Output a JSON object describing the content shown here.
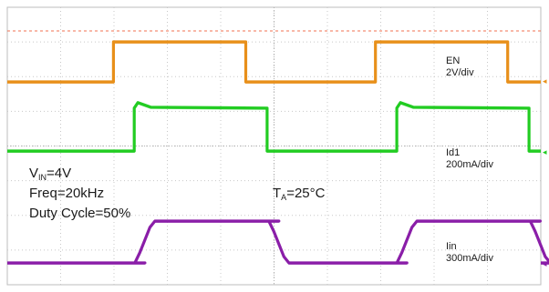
{
  "chart_data": {
    "type": "line",
    "grid": true,
    "x": {
      "divisions": 10
    },
    "series": [
      {
        "name": "EN",
        "scale": "2V/div",
        "color": "#e8901a",
        "low_div": -0.05,
        "high_div": 1.05,
        "edges": [
          {
            "x_div": 0.0,
            "level": "low"
          },
          {
            "x_div": 1.99,
            "level": "high"
          },
          {
            "x_div": 4.47,
            "level": "low"
          },
          {
            "x_div": 6.9,
            "level": "high"
          },
          {
            "x_div": 9.38,
            "level": "low"
          }
        ]
      },
      {
        "name": "Id1",
        "scale": "200mA/div",
        "color": "#22cc22",
        "low_div": 0,
        "high_div": 1.18,
        "edges": [
          {
            "x_div": 0.0,
            "level": "low"
          },
          {
            "x_div": 2.38,
            "level": "high"
          },
          {
            "x_div": 4.87,
            "level": "low"
          },
          {
            "x_div": 7.3,
            "level": "high"
          },
          {
            "x_div": 9.78,
            "level": "low"
          }
        ]
      },
      {
        "name": "Iin",
        "scale": "300mA/div",
        "color": "#8a1ea8",
        "low_div": 0,
        "high_div": 1.0,
        "edges": [
          {
            "x_div": 0.0,
            "level": "low"
          },
          {
            "x_div": 2.58,
            "level": "high"
          },
          {
            "x_div": 5.09,
            "level": "low"
          },
          {
            "x_div": 7.49,
            "level": "high"
          },
          {
            "x_div": 9.99,
            "level": "low"
          }
        ]
      }
    ],
    "annotations": {
      "en_name": "EN",
      "en_scale": "2V/div",
      "id1_name": "Id1",
      "id1_scale": "200mA/div",
      "iin_name": "Iin",
      "iin_scale": "300mA/div",
      "vin_prefix": "V",
      "vin_sub": "IN",
      "vin_value": "=4V",
      "freq": "Freq=20kHz",
      "duty": "Duty Cycle=50%",
      "ta_prefix": "T",
      "ta_sub": "A",
      "ta_value": "=25°C"
    }
  }
}
